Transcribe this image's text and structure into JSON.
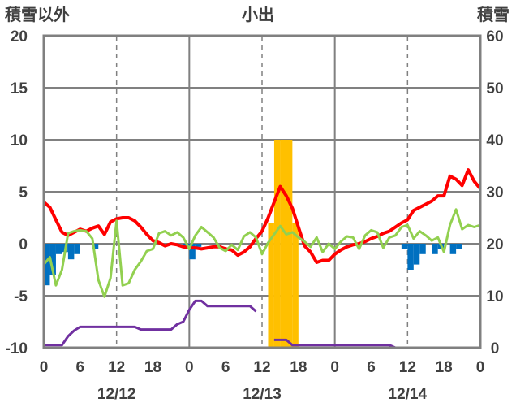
{
  "header": {
    "left_title": "積雪以外",
    "center_title": "小出",
    "right_title": "積雪"
  },
  "chart_data": {
    "type": "line",
    "title": "小出",
    "left_axis": {
      "label": "積雪以外",
      "ylim": [
        -10,
        20
      ],
      "ticks": [
        20,
        15,
        10,
        5,
        0,
        -5,
        -10
      ],
      "tick_labels": [
        "20",
        "15",
        "10",
        "5",
        "0",
        "-5",
        "-10"
      ]
    },
    "right_axis": {
      "label": "積雪",
      "ylim": [
        0,
        60
      ],
      "ticks": [
        60,
        50,
        40,
        30,
        20,
        10,
        0
      ],
      "tick_labels": [
        "60",
        "50",
        "40",
        "30",
        "20",
        "10",
        "0"
      ]
    },
    "x_axis": {
      "range_hours": [
        0,
        72
      ],
      "hour_ticks": [
        0,
        6,
        12,
        18,
        0,
        6,
        12,
        18,
        0,
        6,
        12,
        18,
        0
      ],
      "date_labels": [
        {
          "label": "12/12",
          "hour": 12
        },
        {
          "label": "12/13",
          "hour": 36
        },
        {
          "label": "12/14",
          "hour": 60
        }
      ],
      "day_boundaries": [
        24,
        48
      ],
      "dashed_grid_hours": [
        12,
        36,
        60
      ]
    },
    "grid": "horizontal",
    "colors": {
      "red_series": "#ff0000",
      "green_series": "#92d050",
      "purple_series": "#7030a0",
      "blue_bars": "#0070c0",
      "orange_bars": "#ffc000"
    },
    "series": [
      {
        "axis": "left",
        "style": "line",
        "color": "#ff0000",
        "points": [
          [
            0,
            4.0
          ],
          [
            1,
            3.5
          ],
          [
            2,
            2.3
          ],
          [
            3,
            1.1
          ],
          [
            4,
            0.8
          ],
          [
            5,
            1.1
          ],
          [
            6,
            1.4
          ],
          [
            7,
            1.2
          ],
          [
            8,
            1.5
          ],
          [
            9,
            1.7
          ],
          [
            10,
            0.9
          ],
          [
            11,
            2.1
          ],
          [
            12,
            2.4
          ],
          [
            13,
            2.5
          ],
          [
            14,
            2.5
          ],
          [
            15,
            2.2
          ],
          [
            16,
            1.6
          ],
          [
            17,
            0.9
          ],
          [
            18,
            0.3
          ],
          [
            19,
            0.1
          ],
          [
            20,
            -0.2
          ],
          [
            21,
            0.0
          ],
          [
            22,
            -0.1
          ],
          [
            23,
            -0.3
          ],
          [
            24,
            -0.4
          ],
          [
            25,
            -0.4
          ],
          [
            26,
            -0.5
          ],
          [
            27,
            -0.4
          ],
          [
            28,
            -0.3
          ],
          [
            29,
            -0.3
          ],
          [
            30,
            -0.5
          ],
          [
            31,
            -0.6
          ],
          [
            32,
            -1.1
          ],
          [
            33,
            -0.8
          ],
          [
            34,
            -0.3
          ],
          [
            35,
            0.5
          ],
          [
            36,
            1.2
          ],
          [
            37,
            2.5
          ],
          [
            38,
            4.0
          ],
          [
            39,
            5.5
          ],
          [
            40,
            4.6
          ],
          [
            41,
            3.4
          ],
          [
            42,
            1.6
          ],
          [
            43,
            -0.2
          ],
          [
            44,
            -0.8
          ],
          [
            45,
            -1.8
          ],
          [
            46,
            -1.6
          ],
          [
            47,
            -1.6
          ],
          [
            48,
            -1.0
          ],
          [
            49,
            -0.6
          ],
          [
            50,
            -0.3
          ],
          [
            51,
            -0.1
          ],
          [
            52,
            0.0
          ],
          [
            53,
            0.2
          ],
          [
            54,
            0.5
          ],
          [
            55,
            0.7
          ],
          [
            56,
            1.0
          ],
          [
            57,
            1.2
          ],
          [
            58,
            1.6
          ],
          [
            59,
            2.0
          ],
          [
            60,
            2.3
          ],
          [
            61,
            3.2
          ],
          [
            62,
            3.5
          ],
          [
            63,
            3.8
          ],
          [
            64,
            4.1
          ],
          [
            65,
            4.6
          ],
          [
            66,
            4.6
          ],
          [
            67,
            6.5
          ],
          [
            68,
            6.2
          ],
          [
            69,
            5.6
          ],
          [
            70,
            7.1
          ],
          [
            71,
            6.0
          ],
          [
            72,
            5.3
          ]
        ]
      },
      {
        "axis": "left",
        "style": "line",
        "color": "#92d050",
        "points": [
          [
            0,
            -2.0
          ],
          [
            1,
            -1.3
          ],
          [
            2,
            -4.0
          ],
          [
            3,
            -2.5
          ],
          [
            4,
            1.0
          ],
          [
            5,
            1.2
          ],
          [
            6,
            1.3
          ],
          [
            7,
            1.2
          ],
          [
            8,
            0.5
          ],
          [
            9,
            -3.5
          ],
          [
            10,
            -5.1
          ],
          [
            11,
            -3.3
          ],
          [
            12,
            2.2
          ],
          [
            13,
            -4.0
          ],
          [
            14,
            -3.8
          ],
          [
            15,
            -2.5
          ],
          [
            16,
            -1.7
          ],
          [
            17,
            -0.7
          ],
          [
            18,
            -0.5
          ],
          [
            19,
            1.0
          ],
          [
            20,
            1.2
          ],
          [
            21,
            0.8
          ],
          [
            22,
            1.1
          ],
          [
            23,
            0.6
          ],
          [
            24,
            -0.5
          ],
          [
            25,
            0.8
          ],
          [
            26,
            1.6
          ],
          [
            27,
            1.1
          ],
          [
            28,
            0.6
          ],
          [
            29,
            -0.4
          ],
          [
            30,
            -0.7
          ],
          [
            31,
            -0.1
          ],
          [
            32,
            -0.6
          ],
          [
            33,
            0.7
          ],
          [
            34,
            1.1
          ],
          [
            35,
            0.6
          ],
          [
            36,
            -1.0
          ],
          [
            37,
            0.1
          ],
          [
            38,
            0.9
          ],
          [
            39,
            1.7
          ],
          [
            40,
            0.9
          ],
          [
            41,
            1.1
          ],
          [
            42,
            0.6
          ],
          [
            43,
            0.2
          ],
          [
            44,
            -0.3
          ],
          [
            45,
            0.6
          ],
          [
            46,
            -0.8
          ],
          [
            47,
            0.0
          ],
          [
            48,
            -0.5
          ],
          [
            49,
            0.2
          ],
          [
            50,
            0.7
          ],
          [
            51,
            0.6
          ],
          [
            52,
            -0.5
          ],
          [
            53,
            0.8
          ],
          [
            54,
            1.3
          ],
          [
            55,
            1.1
          ],
          [
            56,
            -0.4
          ],
          [
            57,
            0.6
          ],
          [
            58,
            0.8
          ],
          [
            59,
            1.6
          ],
          [
            60,
            1.8
          ],
          [
            61,
            0.5
          ],
          [
            62,
            1.2
          ],
          [
            63,
            0.8
          ],
          [
            64,
            0.3
          ],
          [
            65,
            0.6
          ],
          [
            66,
            -0.8
          ],
          [
            67,
            1.8
          ],
          [
            68,
            3.3
          ],
          [
            69,
            1.4
          ],
          [
            70,
            1.8
          ],
          [
            71,
            1.6
          ],
          [
            72,
            1.8
          ]
        ]
      },
      {
        "axis": "right",
        "style": "line",
        "color": "#7030a0",
        "segments": [
          [
            [
              0,
              0.5
            ],
            [
              3,
              0.5
            ],
            [
              4,
              2.2
            ],
            [
              5,
              3.3
            ],
            [
              6,
              4.0
            ],
            [
              7,
              4.0
            ],
            [
              8,
              4.0
            ],
            [
              9,
              4.0
            ],
            [
              10,
              4.0
            ],
            [
              11,
              4.0
            ],
            [
              12,
              4.0
            ],
            [
              13,
              4.0
            ],
            [
              14,
              4.0
            ],
            [
              15,
              4.0
            ],
            [
              16,
              3.5
            ],
            [
              17,
              3.5
            ],
            [
              18,
              3.5
            ],
            [
              19,
              3.5
            ],
            [
              20,
              3.5
            ],
            [
              21,
              3.5
            ],
            [
              22,
              4.5
            ],
            [
              23,
              5.0
            ],
            [
              24,
              7.3
            ],
            [
              25,
              9.0
            ],
            [
              26,
              9.0
            ],
            [
              27,
              8.0
            ],
            [
              28,
              8.0
            ],
            [
              29,
              8.0
            ],
            [
              30,
              8.0
            ],
            [
              31,
              8.0
            ],
            [
              32,
              8.0
            ],
            [
              33,
              8.0
            ],
            [
              34,
              8.0
            ],
            [
              35,
              7.0
            ]
          ],
          [
            [
              38,
              1.5
            ],
            [
              40,
              1.5
            ],
            [
              41,
              0.5
            ],
            [
              42,
              0.5
            ],
            [
              44,
              0.5
            ],
            [
              46,
              0.5
            ],
            [
              48,
              0.5
            ],
            [
              50,
              0.5
            ],
            [
              52,
              0.5
            ],
            [
              54,
              0.5
            ],
            [
              56,
              0.5
            ],
            [
              57,
              0.5
            ],
            [
              58,
              0.0
            ],
            [
              60,
              0.0
            ],
            [
              62,
              0.0
            ],
            [
              64,
              0.0
            ],
            [
              66,
              0.0
            ],
            [
              68,
              0.0
            ],
            [
              70,
              0.0
            ],
            [
              72,
              0.0
            ]
          ]
        ]
      },
      {
        "axis": "left",
        "style": "bar",
        "color": "#0070c0",
        "bars": [
          [
            0,
            -4.0
          ],
          [
            1,
            -3.0
          ],
          [
            2,
            -1.0
          ],
          [
            3,
            -0.8
          ],
          [
            4,
            -1.5
          ],
          [
            5,
            -1.0
          ],
          [
            8,
            -0.5
          ],
          [
            23,
            -0.2
          ],
          [
            24,
            -1.5
          ],
          [
            25,
            -0.3
          ],
          [
            59,
            -0.5
          ],
          [
            60,
            -2.5
          ],
          [
            61,
            -2.0
          ],
          [
            62,
            -1.0
          ],
          [
            64,
            -1.0
          ],
          [
            65,
            -0.5
          ],
          [
            67,
            -1.0
          ],
          [
            68,
            -0.5
          ]
        ]
      },
      {
        "axis": "right",
        "style": "bar",
        "color": "#ffc000",
        "bars": [
          [
            37,
            24
          ],
          [
            38,
            40
          ],
          [
            39,
            40
          ],
          [
            40,
            40
          ],
          [
            41,
            24
          ]
        ]
      }
    ]
  }
}
